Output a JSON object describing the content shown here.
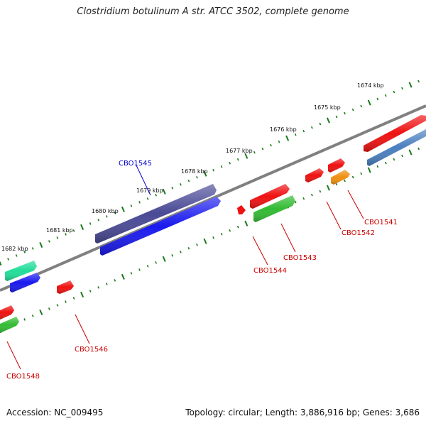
{
  "title": "Clostridium botulinum A str. ATCC 3502, complete genome",
  "accession": "Accession: NC_009495",
  "summary": "Topology: circular; Length: 3,886,916 bp; Genes: 3,686",
  "ticks": [
    {
      "label": "1674 kbp",
      "kbp": 1674
    },
    {
      "label": "1675 kbp",
      "kbp": 1675
    },
    {
      "label": "1676 kbp",
      "kbp": 1676
    },
    {
      "label": "1677 kbp",
      "kbp": 1677
    },
    {
      "label": "1678 kbp",
      "kbp": 1678
    },
    {
      "label": "1679 kbp",
      "kbp": 1679
    },
    {
      "label": "1680 kbp",
      "kbp": 1680
    },
    {
      "label": "1681 kbp",
      "kbp": 1681
    },
    {
      "label": "1682 kbp",
      "kbp": 1682
    }
  ],
  "gene_labels": [
    {
      "name": "CBO1541",
      "color": "#cc0000"
    },
    {
      "name": "CBO1542",
      "color": "#cc0000"
    },
    {
      "name": "CBO1543",
      "color": "#cc0000"
    },
    {
      "name": "CBO1544",
      "color": "#cc0000"
    },
    {
      "name": "CBO1545",
      "color": "#0000cc"
    },
    {
      "name": "CBO1546",
      "color": "#cc0000"
    },
    {
      "name": "CBO1548",
      "color": "#cc0000"
    }
  ],
  "colors": {
    "backbone": "#808080",
    "tick": "#1a7a1a",
    "red": "#ee1111",
    "blue": "#1a1aee",
    "slate": "#4a4a96",
    "green": "#33bb33",
    "teal": "#22dd99",
    "orange": "#f09010",
    "steel": "#4a7fbf"
  }
}
